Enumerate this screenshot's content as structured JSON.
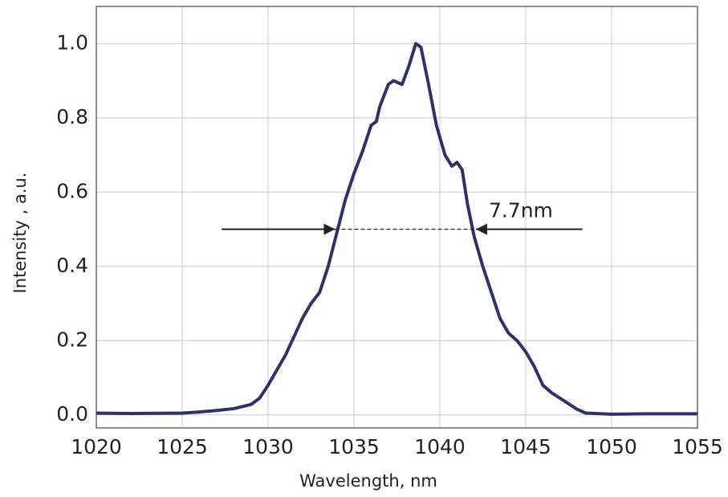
{
  "chart_data": {
    "type": "line",
    "xlabel": "Wavelength, nm",
    "ylabel": "Intensity , a.u.",
    "x": [
      1020,
      1022,
      1025,
      1026,
      1027,
      1028,
      1029,
      1029.5,
      1030,
      1030.5,
      1031,
      1031.5,
      1032,
      1032.5,
      1033,
      1033.5,
      1034,
      1034.5,
      1035,
      1035.5,
      1036,
      1036.3,
      1036.5,
      1037,
      1037.3,
      1037.8,
      1038.2,
      1038.6,
      1038.9,
      1039.3,
      1039.8,
      1040.3,
      1040.7,
      1041,
      1041.3,
      1041.6,
      1042,
      1042.5,
      1043,
      1043.5,
      1044,
      1044.5,
      1045,
      1045.5,
      1046,
      1046.5,
      1047,
      1047.5,
      1048,
      1048.5,
      1050,
      1052,
      1055
    ],
    "series": [
      {
        "name": "Intensity",
        "color": "#2e3266",
        "values": [
          0.005,
          0.004,
          0.005,
          0.008,
          0.012,
          0.017,
          0.028,
          0.045,
          0.08,
          0.12,
          0.16,
          0.21,
          0.26,
          0.3,
          0.33,
          0.4,
          0.49,
          0.58,
          0.65,
          0.71,
          0.78,
          0.79,
          0.83,
          0.89,
          0.9,
          0.89,
          0.94,
          1.0,
          0.99,
          0.9,
          0.78,
          0.7,
          0.67,
          0.68,
          0.66,
          0.57,
          0.48,
          0.4,
          0.33,
          0.26,
          0.22,
          0.2,
          0.17,
          0.13,
          0.08,
          0.06,
          0.045,
          0.03,
          0.015,
          0.005,
          0.002,
          0.003,
          0.003
        ]
      }
    ],
    "xlim": [
      1020,
      1055
    ],
    "ylim": [
      -0.035,
      1.1
    ],
    "xticks": [
      1020,
      1025,
      1030,
      1035,
      1040,
      1045,
      1050,
      1055
    ],
    "yticks": [
      {
        "value": 0,
        "label": "0.0"
      },
      0.2,
      0.4,
      0.6,
      0.8,
      {
        "value": 1,
        "label": "1.0"
      }
    ],
    "grid": true,
    "annotation": {
      "text": "7.7nm",
      "y": 0.5,
      "x": [
        1033.9,
        1042.1
      ],
      "arrow_from": [
        1027.3,
        1048.3
      ]
    }
  }
}
